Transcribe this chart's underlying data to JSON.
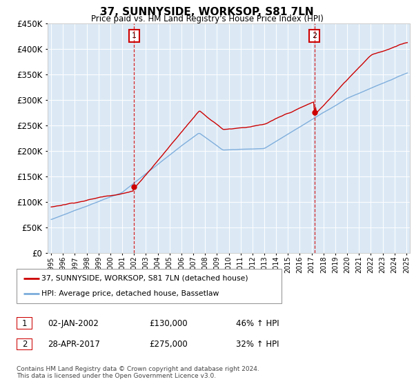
{
  "title": "37, SUNNYSIDE, WORKSOP, S81 7LN",
  "subtitle": "Price paid vs. HM Land Registry's House Price Index (HPI)",
  "ylim": [
    0,
    450000
  ],
  "yticks": [
    0,
    50000,
    100000,
    150000,
    200000,
    250000,
    300000,
    350000,
    400000,
    450000
  ],
  "bg_color": "#dce9f5",
  "line1_color": "#cc0000",
  "line2_color": "#7aabdb",
  "sale1_year": 2002.0,
  "sale1_price": 130000,
  "sale2_year": 2017.25,
  "sale2_price": 275000,
  "legend_line1": "37, SUNNYSIDE, WORKSOP, S81 7LN (detached house)",
  "legend_line2": "HPI: Average price, detached house, Bassetlaw",
  "table_row1": [
    "1",
    "02-JAN-2002",
    "£130,000",
    "46% ↑ HPI"
  ],
  "table_row2": [
    "2",
    "28-APR-2017",
    "£275,000",
    "32% ↑ HPI"
  ],
  "footer": "Contains HM Land Registry data © Crown copyright and database right 2024.\nThis data is licensed under the Open Government Licence v3.0.",
  "xstart": 1995,
  "xend": 2025
}
